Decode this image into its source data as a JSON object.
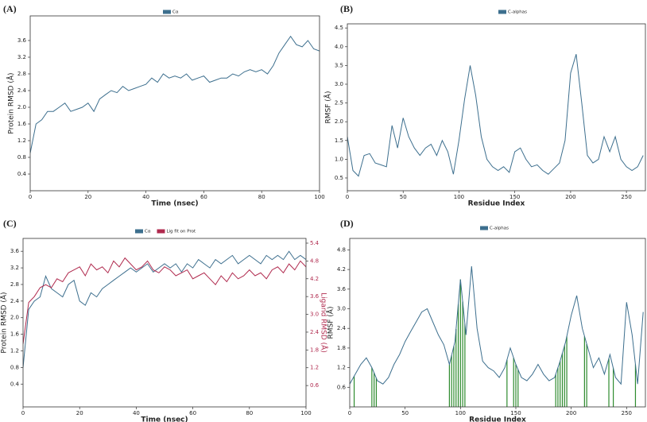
{
  "chart_data": [
    {
      "type": "line",
      "panel_label": "(A)",
      "xlabel": "Time (nsec)",
      "ylabel": "Protein RMSD (Å)",
      "x": [
        0,
        2,
        4,
        6,
        8,
        10,
        12,
        14,
        16,
        18,
        20,
        22,
        24,
        26,
        28,
        30,
        32,
        34,
        36,
        38,
        40,
        42,
        44,
        46,
        48,
        50,
        52,
        54,
        56,
        58,
        60,
        62,
        64,
        66,
        68,
        70,
        72,
        74,
        76,
        78,
        80,
        82,
        84,
        86,
        88,
        90,
        92,
        94,
        96,
        98,
        100
      ],
      "series": [
        {
          "name": "Cα",
          "color": "#3d6f8e",
          "values": [
            0.9,
            1.6,
            1.7,
            1.9,
            1.9,
            2.0,
            2.1,
            1.9,
            1.95,
            2.0,
            2.1,
            1.9,
            2.2,
            2.3,
            2.4,
            2.35,
            2.5,
            2.4,
            2.45,
            2.5,
            2.55,
            2.7,
            2.6,
            2.8,
            2.7,
            2.75,
            2.7,
            2.8,
            2.65,
            2.7,
            2.75,
            2.6,
            2.65,
            2.7,
            2.7,
            2.8,
            2.75,
            2.85,
            2.9,
            2.85,
            2.9,
            2.8,
            3.0,
            3.3,
            3.5,
            3.7,
            3.5,
            3.45,
            3.6,
            3.4,
            3.35
          ]
        }
      ],
      "xlim": [
        0,
        100
      ],
      "xticks": [
        0,
        20,
        40,
        60,
        80,
        100
      ],
      "ylim": [
        0,
        4.19
      ],
      "yticks": [
        0.4,
        0.8,
        1.2,
        1.6,
        {
          "value": 2,
          "label": "2.0"
        },
        2.4,
        2.8,
        3.2,
        3.6
      ]
    },
    {
      "type": "line",
      "panel_label": "(B)",
      "xlabel": "Residue Index",
      "ylabel": "RMSF (Å)",
      "x": [
        0,
        5,
        10,
        15,
        20,
        25,
        30,
        35,
        40,
        45,
        50,
        55,
        60,
        65,
        70,
        75,
        80,
        85,
        90,
        95,
        100,
        105,
        110,
        115,
        120,
        125,
        130,
        135,
        140,
        145,
        150,
        155,
        160,
        165,
        170,
        175,
        180,
        185,
        190,
        195,
        200,
        205,
        210,
        215,
        220,
        225,
        230,
        235,
        240,
        245,
        250,
        255,
        260,
        265
      ],
      "series": [
        {
          "name": "C-alphas",
          "color": "#3d6f8e",
          "values": [
            1.6,
            0.7,
            0.55,
            1.1,
            1.15,
            0.9,
            0.85,
            0.8,
            1.9,
            1.3,
            2.1,
            1.6,
            1.3,
            1.1,
            1.3,
            1.4,
            1.1,
            1.5,
            1.2,
            0.6,
            1.5,
            2.6,
            3.5,
            2.7,
            1.6,
            1.0,
            0.8,
            0.7,
            0.8,
            0.65,
            1.2,
            1.3,
            1.0,
            0.8,
            0.85,
            0.7,
            0.6,
            0.75,
            0.9,
            1.5,
            3.3,
            3.8,
            2.5,
            1.1,
            0.9,
            1.0,
            1.6,
            1.2,
            1.6,
            1.0,
            0.8,
            0.7,
            0.8,
            1.1
          ]
        }
      ],
      "xlim": [
        0,
        267
      ],
      "xticks": [
        0,
        50,
        100,
        150,
        200,
        250
      ],
      "ylim": [
        0.16,
        4.61
      ],
      "yticks": [
        0.5,
        {
          "value": 1,
          "label": "1.0"
        },
        1.5,
        {
          "value": 2,
          "label": "2.0"
        },
        2.5,
        {
          "value": 3,
          "label": "3.0"
        },
        3.5,
        {
          "value": 4,
          "label": "4.0"
        },
        4.5
      ]
    },
    {
      "type": "line",
      "panel_label": "(C)",
      "xlabel": "Time (nsec)",
      "ylabel": "Protein RMSD (Å)",
      "y2label": "Ligand RMSD (Å)",
      "x": [
        0,
        2,
        4,
        6,
        8,
        10,
        12,
        14,
        16,
        18,
        20,
        22,
        24,
        26,
        28,
        30,
        32,
        34,
        36,
        38,
        40,
        42,
        44,
        46,
        48,
        50,
        52,
        54,
        56,
        58,
        60,
        62,
        64,
        66,
        68,
        70,
        72,
        74,
        76,
        78,
        80,
        82,
        84,
        86,
        88,
        90,
        92,
        94,
        96,
        98,
        100
      ],
      "series": [
        {
          "name": "Cα",
          "color": "#3d6f8e",
          "values": [
            0.8,
            2.2,
            2.4,
            2.5,
            3.0,
            2.7,
            2.6,
            2.5,
            2.8,
            2.9,
            2.4,
            2.3,
            2.6,
            2.5,
            2.7,
            2.8,
            2.9,
            3.0,
            3.1,
            3.2,
            3.1,
            3.2,
            3.3,
            3.1,
            3.2,
            3.3,
            3.2,
            3.3,
            3.1,
            3.3,
            3.2,
            3.4,
            3.3,
            3.2,
            3.4,
            3.3,
            3.4,
            3.5,
            3.3,
            3.4,
            3.5,
            3.4,
            3.3,
            3.5,
            3.4,
            3.5,
            3.4,
            3.6,
            3.4,
            3.5,
            3.4
          ]
        },
        {
          "name": "Lig fit on Prot",
          "color": "#b02a4e",
          "axis": "y2",
          "values": [
            2.0,
            3.4,
            3.6,
            3.9,
            4.0,
            3.9,
            4.2,
            4.1,
            4.4,
            4.5,
            4.6,
            4.3,
            4.7,
            4.5,
            4.6,
            4.4,
            4.8,
            4.6,
            4.9,
            4.7,
            4.5,
            4.6,
            4.8,
            4.5,
            4.4,
            4.6,
            4.5,
            4.3,
            4.4,
            4.5,
            4.2,
            4.3,
            4.4,
            4.2,
            4.0,
            4.3,
            4.1,
            4.4,
            4.2,
            4.3,
            4.5,
            4.3,
            4.4,
            4.2,
            4.5,
            4.6,
            4.4,
            4.7,
            4.5,
            4.8,
            4.6
          ]
        }
      ],
      "xlim": [
        0,
        100
      ],
      "xticks": [
        0,
        20,
        40,
        60,
        80,
        100
      ],
      "ylim": [
        -0.15,
        3.91
      ],
      "yticks": [
        0.4,
        0.8,
        1.2,
        1.6,
        {
          "value": 2,
          "label": "2.0"
        },
        2.4,
        2.8,
        3.2,
        3.6
      ],
      "y2lim": [
        -0.12,
        5.56
      ],
      "y2ticks": [
        0.6,
        1.2,
        1.8,
        2.4,
        {
          "value": 3,
          "label": "3.0"
        },
        3.6,
        4.2,
        4.8,
        5.4
      ]
    },
    {
      "type": "line",
      "panel_label": "(D)",
      "xlabel": "Residue Index",
      "ylabel": "RMSF (Å)",
      "x": [
        0,
        5,
        10,
        15,
        20,
        25,
        30,
        35,
        40,
        45,
        50,
        55,
        60,
        65,
        70,
        75,
        80,
        85,
        90,
        95,
        100,
        105,
        110,
        115,
        120,
        125,
        130,
        135,
        140,
        145,
        150,
        155,
        160,
        165,
        170,
        175,
        180,
        185,
        190,
        195,
        200,
        205,
        210,
        215,
        220,
        225,
        230,
        235,
        240,
        245,
        250,
        255,
        260,
        265
      ],
      "series": [
        {
          "name": "C-alphas",
          "color": "#3d6f8e",
          "values": [
            0.7,
            1.0,
            1.3,
            1.5,
            1.2,
            0.8,
            0.7,
            0.9,
            1.3,
            1.6,
            2.0,
            2.3,
            2.6,
            2.9,
            3.0,
            2.6,
            2.2,
            1.9,
            1.3,
            2.0,
            3.9,
            2.2,
            4.3,
            2.4,
            1.4,
            1.2,
            1.1,
            0.9,
            1.2,
            1.8,
            1.3,
            0.9,
            0.8,
            1.0,
            1.3,
            1.0,
            0.8,
            0.9,
            1.4,
            2.0,
            2.8,
            3.4,
            2.4,
            1.8,
            1.2,
            1.5,
            1.0,
            1.6,
            0.9,
            0.7,
            3.2,
            2.2,
            0.7,
            2.9
          ]
        }
      ],
      "contacts": [
        4,
        20,
        22,
        24,
        90,
        92,
        94,
        96,
        98,
        100,
        102,
        104,
        142,
        148,
        150,
        152,
        186,
        188,
        190,
        192,
        194,
        196,
        212,
        214,
        234,
        238,
        258
      ],
      "contact_color": "#2e8b2e",
      "xlim": [
        0,
        267
      ],
      "xticks": [
        0,
        50,
        100,
        150,
        200,
        250
      ],
      "ylim": [
        0,
        5.15
      ],
      "yticks": [
        0.6,
        1.2,
        1.8,
        2.4,
        {
          "value": 3,
          "label": "3.0"
        },
        3.6,
        4.2,
        4.8
      ]
    }
  ]
}
